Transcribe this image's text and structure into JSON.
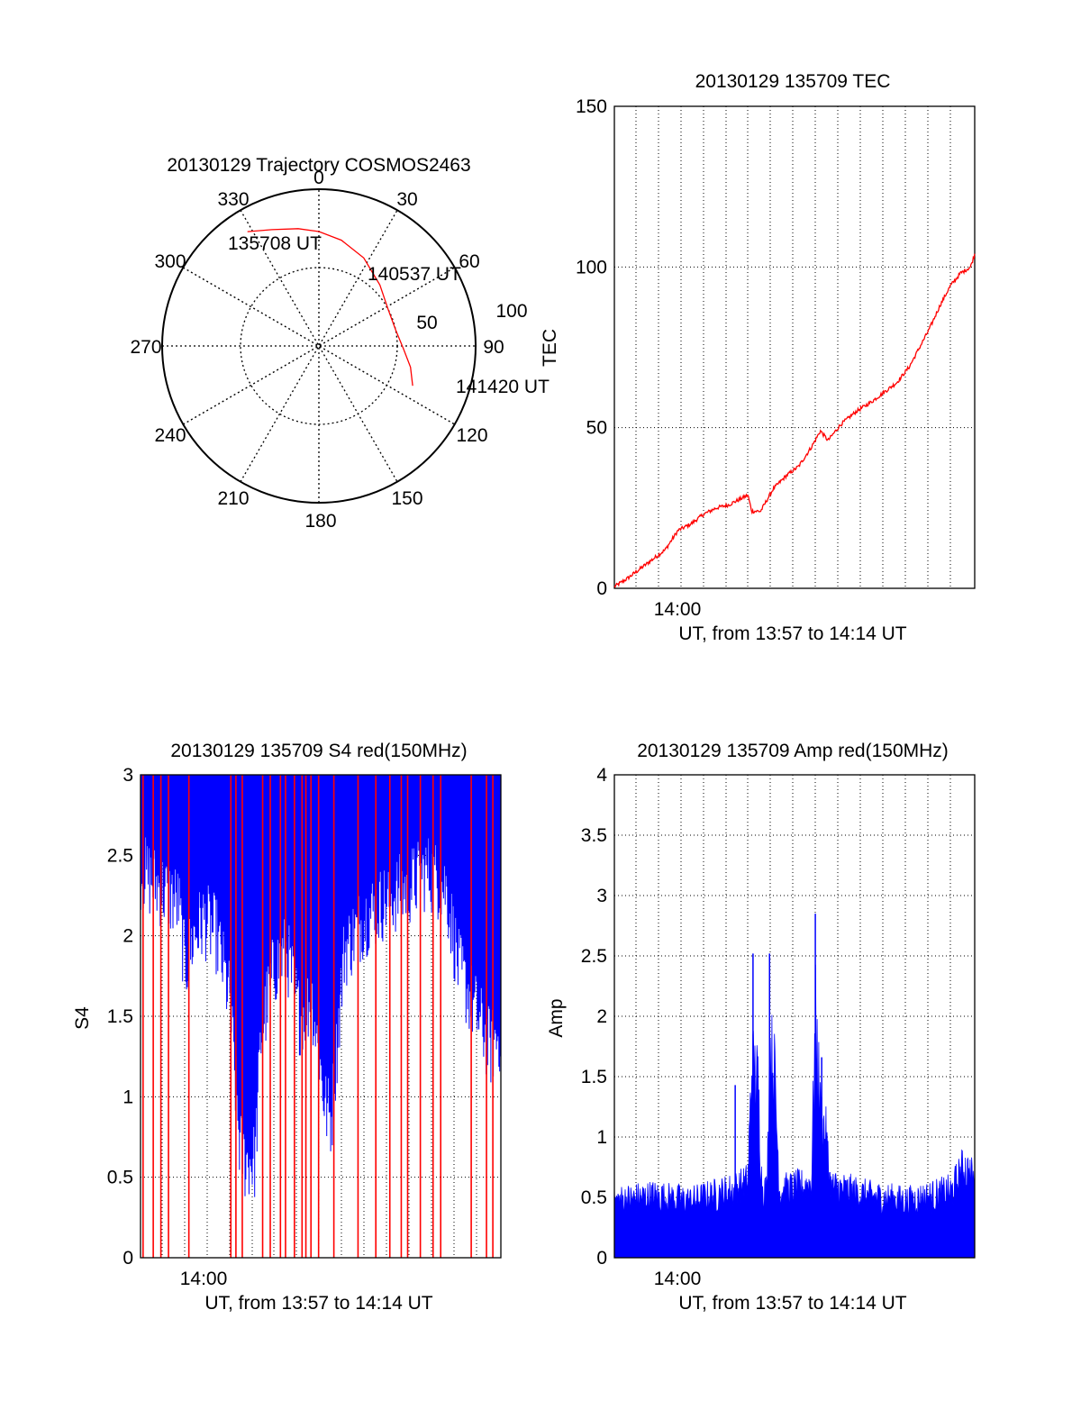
{
  "colors": {
    "red": "#ff0000",
    "blue": "#0000ff",
    "axis": "#000000",
    "grid": "#000000"
  },
  "chart_data": [
    {
      "id": "polar",
      "type": "polar",
      "title": "20130129 Trajectory COSMOS2463",
      "angle_ticks": [
        "0",
        "30",
        "60",
        "90",
        "120",
        "150",
        "180",
        "210",
        "240",
        "270",
        "300",
        "330"
      ],
      "radial_ticks": [
        "50",
        "100"
      ],
      "grid": true,
      "series": [
        {
          "color": "#ff0000",
          "points": [
            {
              "az": 328,
              "r": 86
            },
            {
              "az": 338,
              "r": 80
            },
            {
              "az": 350,
              "r": 76
            },
            {
              "az": 0,
              "r": 73
            },
            {
              "az": 12,
              "r": 69
            },
            {
              "az": 27,
              "r": 63
            },
            {
              "az": 45,
              "r": 55
            },
            {
              "az": 62,
              "r": 50
            },
            {
              "az": 78,
              "r": 50
            },
            {
              "az": 92,
              "r": 54
            },
            {
              "az": 103,
              "r": 60
            },
            {
              "az": 113,
              "r": 65
            }
          ]
        }
      ],
      "annotations": [
        "135708 UT",
        "140537 UT",
        "141420 UT"
      ]
    },
    {
      "id": "tec",
      "type": "line",
      "title": "20130129 135709 TEC",
      "ylabel": "TEC",
      "xlabel": "UT, from 13:57 to 14:14 UT",
      "x_tick_labels": [
        "14:00"
      ],
      "y_ticks": [
        "0",
        "50",
        "100",
        "150"
      ],
      "ylim": [
        0,
        150
      ],
      "xlim_min": [
        13.95,
        14.2333
      ],
      "grid": true,
      "series": [
        {
          "color": "#ff0000",
          "points": [
            [
              13.95,
              0.5
            ],
            [
              13.96,
              3
            ],
            [
              13.97,
              6
            ],
            [
              13.98,
              9
            ],
            [
              13.99,
              12
            ],
            [
              14.0,
              18
            ],
            [
              14.01,
              20
            ],
            [
              14.02,
              23
            ],
            [
              14.03,
              25
            ],
            [
              14.04,
              26
            ],
            [
              14.05,
              28
            ],
            [
              14.055,
              29
            ],
            [
              14.058,
              24
            ],
            [
              14.065,
              24
            ],
            [
              14.075,
              31
            ],
            [
              14.085,
              35
            ],
            [
              14.095,
              38
            ],
            [
              14.105,
              44
            ],
            [
              14.112,
              49
            ],
            [
              14.118,
              46
            ],
            [
              14.128,
              51
            ],
            [
              14.14,
              55
            ],
            [
              14.152,
              58
            ],
            [
              14.162,
              61
            ],
            [
              14.172,
              64
            ],
            [
              14.182,
              69
            ],
            [
              14.19,
              75
            ],
            [
              14.198,
              81
            ],
            [
              14.206,
              88
            ],
            [
              14.214,
              94
            ],
            [
              14.222,
              98
            ],
            [
              14.23,
              100
            ],
            [
              14.2333,
              104
            ]
          ]
        }
      ]
    },
    {
      "id": "s4",
      "type": "line",
      "title": "20130129 135709 S4 red(150MHz)",
      "ylabel": "S4",
      "xlabel": "UT, from 13:57 to 14:14 UT",
      "x_tick_labels": [
        "14:00"
      ],
      "y_ticks": [
        "0",
        "0.5",
        "1",
        "1.5",
        "2",
        "2.5",
        "3"
      ],
      "ylim": [
        0,
        3
      ],
      "xlim_min": [
        13.95,
        14.2333
      ],
      "grid": true,
      "series": [
        {
          "name": "",
          "color": "#0000ff",
          "envelope": [
            [
              13.95,
              2.4
            ],
            [
              13.965,
              2.3
            ],
            [
              13.98,
              2.2
            ],
            [
              13.985,
              1.8
            ],
            [
              13.992,
              2.0
            ],
            [
              14.0,
              2.1
            ],
            [
              14.01,
              2.0
            ],
            [
              14.02,
              1.6
            ],
            [
              14.028,
              0.7
            ],
            [
              14.032,
              0.6
            ],
            [
              14.04,
              0.6
            ],
            [
              14.045,
              1.4
            ],
            [
              14.055,
              1.8
            ],
            [
              14.065,
              1.9
            ],
            [
              14.075,
              1.5
            ],
            [
              14.085,
              1.6
            ],
            [
              14.095,
              0.95
            ],
            [
              14.1,
              0.85
            ],
            [
              14.11,
              1.9
            ],
            [
              14.125,
              2.1
            ],
            [
              14.14,
              2.2
            ],
            [
              14.16,
              2.3
            ],
            [
              14.175,
              2.4
            ],
            [
              14.19,
              2.3
            ],
            [
              14.2,
              1.8
            ],
            [
              14.215,
              1.5
            ],
            [
              14.225,
              1.3
            ],
            [
              14.2333,
              1.4
            ]
          ]
        },
        {
          "name": "",
          "color": "#ff0000",
          "spike_times": [
            13.952,
            13.96,
            13.966,
            13.972,
            13.988,
            14.021,
            14.025,
            14.03,
            14.046,
            14.052,
            14.06,
            14.064,
            14.071,
            14.077,
            14.08,
            14.084,
            14.09,
            14.102,
            14.121,
            14.135,
            14.146,
            14.155,
            14.16,
            14.17,
            14.18,
            14.186,
            14.21,
            14.222,
            14.227
          ]
        }
      ]
    },
    {
      "id": "amp",
      "type": "line",
      "title": "20130129 135709 Amp red(150MHz)",
      "ylabel": "Amp",
      "xlabel": "UT, from 13:57 to 14:14 UT",
      "x_tick_labels": [
        "14:00"
      ],
      "y_ticks": [
        "0",
        "0.5",
        "1",
        "1.5",
        "2",
        "2.5",
        "3",
        "3.5",
        "4"
      ],
      "ylim": [
        0,
        4
      ],
      "xlim_min": [
        13.95,
        14.2333
      ],
      "grid": true,
      "series": [
        {
          "color": "#0000ff",
          "envelope": [
            [
              13.95,
              0.6
            ],
            [
              13.98,
              0.65
            ],
            [
              14.01,
              0.6
            ],
            [
              14.04,
              0.7
            ],
            [
              14.05,
              0.75
            ],
            [
              14.055,
              0.8
            ],
            [
              14.058,
              2.0
            ],
            [
              14.063,
              1.8
            ],
            [
              14.066,
              0.75
            ],
            [
              14.07,
              0.7
            ],
            [
              14.072,
              2.2
            ],
            [
              14.076,
              1.9
            ],
            [
              14.08,
              0.7
            ],
            [
              14.1,
              0.75
            ],
            [
              14.105,
              0.8
            ],
            [
              14.108,
              2.5
            ],
            [
              14.112,
              1.5
            ],
            [
              14.116,
              1.3
            ],
            [
              14.12,
              0.75
            ],
            [
              14.15,
              0.65
            ],
            [
              14.18,
              0.6
            ],
            [
              14.2,
              0.65
            ],
            [
              14.215,
              0.7
            ],
            [
              14.225,
              0.95
            ],
            [
              14.2333,
              0.8
            ]
          ],
          "peaks": [
            [
              14.059,
              2.52
            ],
            [
              14.072,
              2.52
            ],
            [
              14.108,
              2.85
            ],
            [
              14.113,
              1.66
            ],
            [
              14.045,
              1.43
            ]
          ]
        }
      ]
    }
  ]
}
